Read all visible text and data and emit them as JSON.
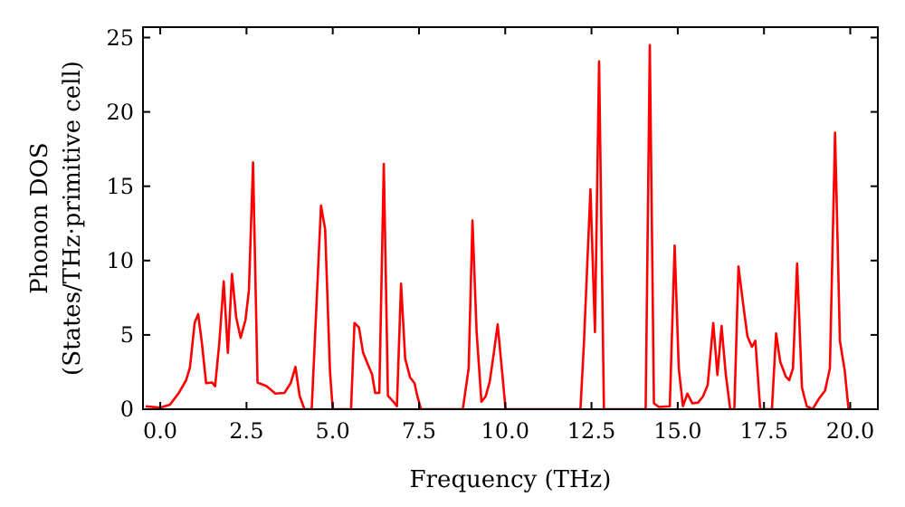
{
  "chart_data": {
    "type": "line",
    "xlabel": "Frequency (THz)",
    "ylabel": "Phonon DOS\n(States/THz·primitive cell)",
    "xlim": [
      -0.5,
      20.8
    ],
    "ylim": [
      0,
      25.7
    ],
    "xticks": [
      {
        "value": 0,
        "label": "0.0"
      },
      {
        "value": 2.5,
        "label": "2.5"
      },
      {
        "value": 5,
        "label": "5.0"
      },
      {
        "value": 7.5,
        "label": "7.5"
      },
      {
        "value": 10,
        "label": "10.0"
      },
      {
        "value": 12.5,
        "label": "12.5"
      },
      {
        "value": 15,
        "label": "15.0"
      },
      {
        "value": 17.5,
        "label": "17.5"
      },
      {
        "value": 20,
        "label": "20.0"
      }
    ],
    "yticks": [
      0,
      5,
      10,
      15,
      20,
      25
    ],
    "grid": false,
    "marker": "none",
    "line_style": "solid",
    "series": [
      {
        "color": "#ff0000",
        "x": [
          -0.42,
          0,
          0.28,
          0.54,
          0.75,
          0.86,
          1.0,
          1.1,
          1.21,
          1.33,
          1.5,
          1.59,
          1.71,
          1.84,
          1.96,
          2.08,
          2.2,
          2.33,
          2.47,
          2.57,
          2.69,
          2.82,
          3.08,
          3.34,
          3.6,
          3.78,
          3.92,
          4.04,
          4.18,
          4.39,
          4.66,
          4.78,
          4.92,
          5.0,
          5.53,
          5.63,
          5.76,
          5.88,
          6.02,
          6.14,
          6.23,
          6.35,
          6.48,
          6.6,
          6.76,
          6.86,
          6.98,
          7.1,
          7.24,
          7.37,
          7.45,
          7.56,
          8.77,
          8.94,
          9.05,
          9.17,
          9.31,
          9.43,
          9.55,
          9.67,
          9.78,
          9.9,
          10.01,
          12.18,
          12.28,
          12.47,
          12.6,
          12.72,
          12.86,
          14.07,
          14.19,
          14.31,
          14.45,
          14.77,
          14.91,
          15.03,
          15.15,
          15.28,
          15.42,
          15.59,
          15.73,
          15.87,
          16.03,
          16.15,
          16.27,
          16.39,
          16.52,
          16.64,
          16.76,
          16.9,
          17.02,
          17.15,
          17.25,
          17.39,
          17.73,
          17.85,
          17.97,
          18.13,
          18.23,
          18.34,
          18.46,
          18.6,
          18.74,
          18.91,
          19.09,
          19.27,
          19.41,
          19.56,
          19.7,
          19.84,
          19.95
        ],
        "values": [
          0.2,
          0.1,
          0.3,
          1.1,
          1.95,
          2.8,
          5.85,
          6.4,
          4.4,
          1.75,
          1.8,
          1.55,
          4.4,
          8.6,
          3.8,
          9.1,
          6.2,
          4.8,
          6.0,
          8.0,
          16.6,
          1.8,
          1.55,
          1.05,
          1.1,
          1.75,
          2.85,
          0.9,
          0,
          0,
          13.7,
          12.1,
          2.55,
          0,
          0,
          5.8,
          5.5,
          3.8,
          3.0,
          2.35,
          1.1,
          1.1,
          16.5,
          0.9,
          0.5,
          0.2,
          8.45,
          3.4,
          2.15,
          1.75,
          0.9,
          0,
          0,
          2.75,
          12.7,
          5.2,
          0.5,
          0.85,
          1.85,
          3.8,
          5.7,
          2.75,
          0,
          0,
          4.4,
          14.8,
          5.2,
          23.4,
          0,
          0,
          24.5,
          0.4,
          0.15,
          0.2,
          11.0,
          2.75,
          0.2,
          1.05,
          0.4,
          0.45,
          0.85,
          1.65,
          5.8,
          2.3,
          5.6,
          2.4,
          0,
          0,
          9.6,
          7.0,
          4.9,
          4.2,
          4.6,
          0,
          0,
          5.1,
          3.2,
          2.2,
          1.95,
          2.75,
          9.8,
          1.45,
          0.2,
          0,
          0.7,
          1.25,
          2.75,
          18.6,
          4.6,
          2.6,
          0
        ]
      }
    ]
  }
}
